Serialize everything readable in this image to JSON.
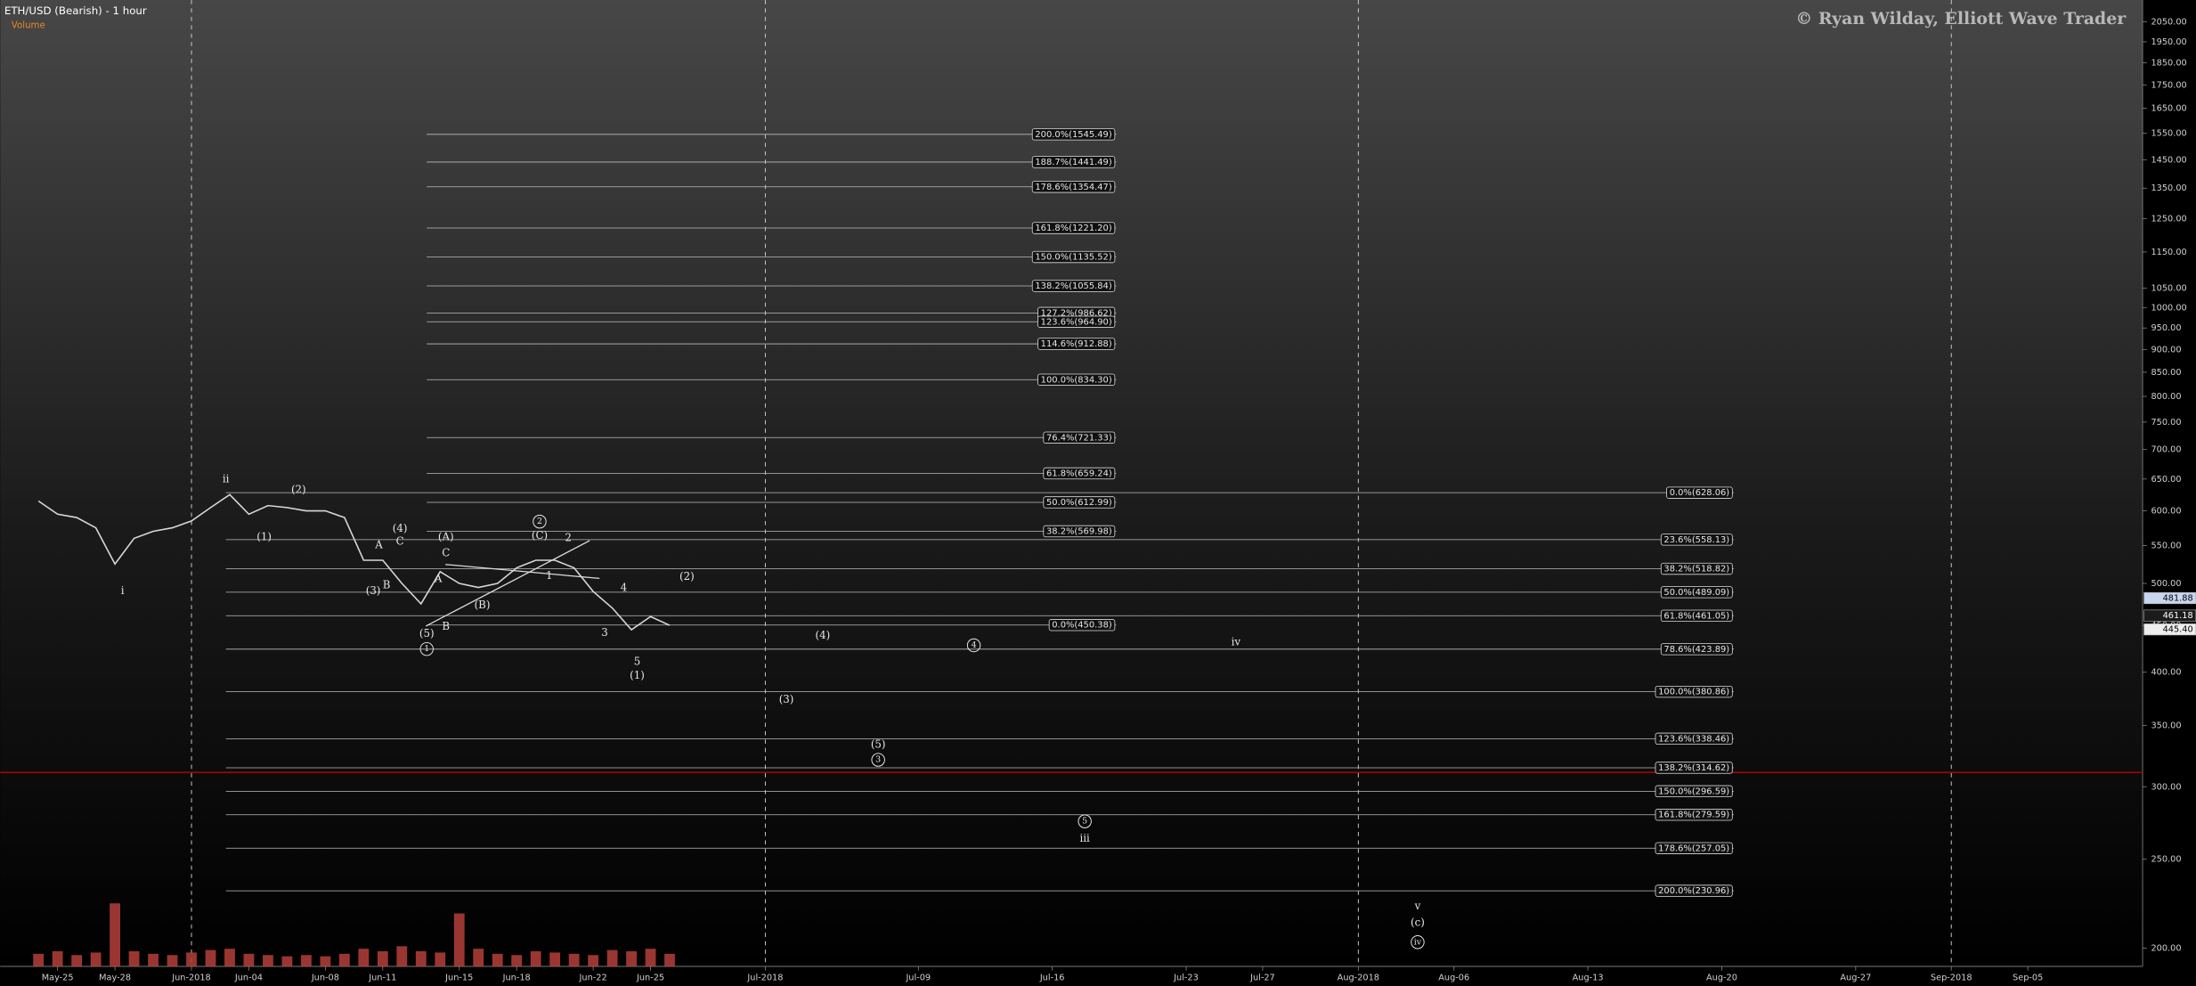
{
  "chart_data": {
    "type": "line",
    "title": "ETH/USD (Bearish) - 1 hour",
    "volume_label": "Volume",
    "watermark": "© Ryan Wilday, Elliott Wave Trader",
    "log_scale": true,
    "x": [
      "2018-05-24",
      "2018-05-25",
      "2018-05-26",
      "2018-05-27",
      "2018-05-28",
      "2018-05-29",
      "2018-05-30",
      "2018-05-31",
      "2018-06-01",
      "2018-06-02",
      "2018-06-03",
      "2018-06-04",
      "2018-06-05",
      "2018-06-06",
      "2018-06-07",
      "2018-06-08",
      "2018-06-09",
      "2018-06-10",
      "2018-06-11",
      "2018-06-12",
      "2018-06-13",
      "2018-06-14",
      "2018-06-15",
      "2018-06-16",
      "2018-06-17",
      "2018-06-18",
      "2018-06-19",
      "2018-06-20",
      "2018-06-21",
      "2018-06-22",
      "2018-06-23",
      "2018-06-24",
      "2018-06-25",
      "2018-06-26"
    ],
    "values": [
      615,
      595,
      590,
      575,
      525,
      560,
      570,
      575,
      585,
      605,
      625,
      595,
      608,
      605,
      600,
      600,
      590,
      530,
      530,
      500,
      475,
      515,
      500,
      495,
      500,
      520,
      530,
      530,
      520,
      490,
      470,
      445,
      460,
      450
    ],
    "color": "#d8d8d8",
    "volume": [
      10,
      12,
      9,
      11,
      50,
      12,
      10,
      9,
      11,
      13,
      14,
      10,
      9,
      8,
      9,
      8,
      10,
      14,
      12,
      16,
      12,
      11,
      42,
      14,
      10,
      9,
      12,
      11,
      10,
      9,
      13,
      12,
      14,
      10
    ],
    "volume_color": "#b5403a",
    "vlim": [
      0,
      100
    ],
    "xlim": [
      "2018-05-22",
      "2018-09-11"
    ],
    "xticks": [
      {
        "value": "2018-05-25",
        "label": "May-25"
      },
      {
        "value": "2018-05-28",
        "label": "May-28"
      },
      {
        "value": "2018-06-01",
        "label": "Jun-2018"
      },
      {
        "value": "2018-06-04",
        "label": "Jun-04"
      },
      {
        "value": "2018-06-08",
        "label": "Jun-08"
      },
      {
        "value": "2018-06-11",
        "label": "Jun-11"
      },
      {
        "value": "2018-06-15",
        "label": "Jun-15"
      },
      {
        "value": "2018-06-18",
        "label": "Jun-18"
      },
      {
        "value": "2018-06-22",
        "label": "Jun-22"
      },
      {
        "value": "2018-06-25",
        "label": "Jun-25"
      },
      {
        "value": "2018-07-01",
        "label": "Jul-2018"
      },
      {
        "value": "2018-07-09",
        "label": "Jul-09"
      },
      {
        "value": "2018-07-16",
        "label": "Jul-16"
      },
      {
        "value": "2018-07-23",
        "label": "Jul-23"
      },
      {
        "value": "2018-07-27",
        "label": "Jul-27"
      },
      {
        "value": "2018-08-01",
        "label": "Aug-2018"
      },
      {
        "value": "2018-08-06",
        "label": "Aug-06"
      },
      {
        "value": "2018-08-13",
        "label": "Aug-13"
      },
      {
        "value": "2018-08-20",
        "label": "Aug-20"
      },
      {
        "value": "2018-08-27",
        "label": "Aug-27"
      },
      {
        "value": "2018-09-01",
        "label": "Sep-2018"
      },
      {
        "value": "2018-09-05",
        "label": "Sep-05"
      }
    ],
    "ylim": [
      191,
      2166
    ],
    "yticks": [
      {
        "value": 200,
        "label": "200.00"
      },
      {
        "value": 250,
        "label": "250.00"
      },
      {
        "value": 300,
        "label": "300.00"
      },
      {
        "value": 350,
        "label": "350.00"
      },
      {
        "value": 400,
        "label": "400.00"
      },
      {
        "value": 450,
        "label": "450.00"
      },
      {
        "value": 500,
        "label": "500.00"
      },
      {
        "value": 550,
        "label": "550.00"
      },
      {
        "value": 600,
        "label": "600.00"
      },
      {
        "value": 650,
        "label": "650.00"
      },
      {
        "value": 700,
        "label": "700.00"
      },
      {
        "value": 750,
        "label": "750.00"
      },
      {
        "value": 800,
        "label": "800.00"
      },
      {
        "value": 850,
        "label": "850.00"
      },
      {
        "value": 900,
        "label": "900.00"
      },
      {
        "value": 950,
        "label": "950.00"
      },
      {
        "value": 1000,
        "label": "1000.00"
      },
      {
        "value": 1050,
        "label": "1050.00"
      },
      {
        "value": 1150,
        "label": "1150.00"
      },
      {
        "value": 1250,
        "label": "1250.00"
      },
      {
        "value": 1350,
        "label": "1350.00"
      },
      {
        "value": 1450,
        "label": "1450.00"
      },
      {
        "value": 1550,
        "label": "1550.00"
      },
      {
        "value": 1650,
        "label": "1650.00"
      },
      {
        "value": 1750,
        "label": "1750.00"
      },
      {
        "value": 1850,
        "label": "1850.00"
      },
      {
        "value": 1950,
        "label": "1950.00"
      },
      {
        "value": 2050,
        "label": "2050.00"
      }
    ],
    "hline": {
      "value": 311,
      "color": "#c00000"
    },
    "fib_upper": [
      {
        "value": 1545.49,
        "label": "200.0%(1545.49)"
      },
      {
        "value": 1441.49,
        "label": "188.7%(1441.49)"
      },
      {
        "value": 1354.47,
        "label": "178.6%(1354.47)"
      },
      {
        "value": 1221.2,
        "label": "161.8%(1221.20)"
      },
      {
        "value": 1135.52,
        "label": "150.0%(1135.52)"
      },
      {
        "value": 1055.84,
        "label": "138.2%(1055.84)"
      },
      {
        "value": 986.62,
        "label": "127.2%(986.62)"
      },
      {
        "value": 964.9,
        "label": "123.6%(964.90)"
      },
      {
        "value": 912.88,
        "label": "114.6%(912.88)"
      },
      {
        "value": 834.3,
        "label": "100.0%(834.30)"
      },
      {
        "value": 721.33,
        "label": "76.4%(721.33)"
      },
      {
        "value": 659.24,
        "label": "61.8%(659.24)"
      },
      {
        "value": 612.99,
        "label": "50.0%(612.99)"
      },
      {
        "value": 569.98,
        "label": "38.2%(569.98)"
      },
      {
        "value": 450.38,
        "label": "0.0%(450.38)"
      }
    ],
    "fib_lower": [
      {
        "value": 628.06,
        "label": "0.0%(628.06)"
      },
      {
        "value": 558.13,
        "label": "23.6%(558.13)"
      },
      {
        "value": 518.82,
        "label": "38.2%(518.82)"
      },
      {
        "value": 489.09,
        "label": "50.0%(489.09)"
      },
      {
        "value": 461.05,
        "label": "61.8%(461.05)"
      },
      {
        "value": 423.89,
        "label": "78.6%(423.89)"
      },
      {
        "value": 380.86,
        "label": "100.0%(380.86)"
      },
      {
        "value": 338.46,
        "label": "123.6%(338.46)"
      },
      {
        "value": 314.62,
        "label": "138.2%(314.62)"
      },
      {
        "value": 296.59,
        "label": "150.0%(296.59)"
      },
      {
        "value": 279.59,
        "label": "161.8%(279.59)"
      },
      {
        "value": 257.05,
        "label": "178.6%(257.05)"
      },
      {
        "value": 230.96,
        "label": "200.0%(230.96)"
      }
    ],
    "price_tags": [
      481.88,
      461.18,
      {
        "value": 445.4,
        "label": "445.40"
      }
    ],
    "wave_labels": [
      {
        "text": "i"
      },
      {
        "text": "ii"
      },
      {
        "text": "(1)"
      },
      {
        "text": "(2)"
      },
      {
        "text": "A"
      },
      {
        "text": "C"
      },
      {
        "text": "(4)"
      },
      {
        "text": "B"
      },
      {
        "text": "(3)"
      },
      {
        "text": "(A)"
      },
      {
        "text": "C"
      },
      {
        "text": "A"
      },
      {
        "text": "(B)"
      },
      {
        "text": "B"
      },
      {
        "text": "(5)"
      },
      {
        "text": "1",
        "circled": true
      },
      {
        "text": "2",
        "circled": true
      },
      {
        "text": "(C)"
      },
      {
        "text": "2"
      },
      {
        "text": "1"
      },
      {
        "text": "4"
      },
      {
        "text": "3"
      },
      {
        "text": "5"
      },
      {
        "text": "(1)"
      },
      {
        "text": "(2)"
      },
      {
        "text": "(4)"
      },
      {
        "text": "4",
        "circled": true
      },
      {
        "text": "iv"
      },
      {
        "text": "(3)"
      },
      {
        "text": "(5)"
      },
      {
        "text": "3",
        "circled": true
      },
      {
        "text": "5",
        "circled": true
      },
      {
        "text": "iii"
      },
      {
        "text": "v"
      },
      {
        "text": "(c)"
      },
      {
        "text": "iv",
        "circled": true
      }
    ]
  }
}
